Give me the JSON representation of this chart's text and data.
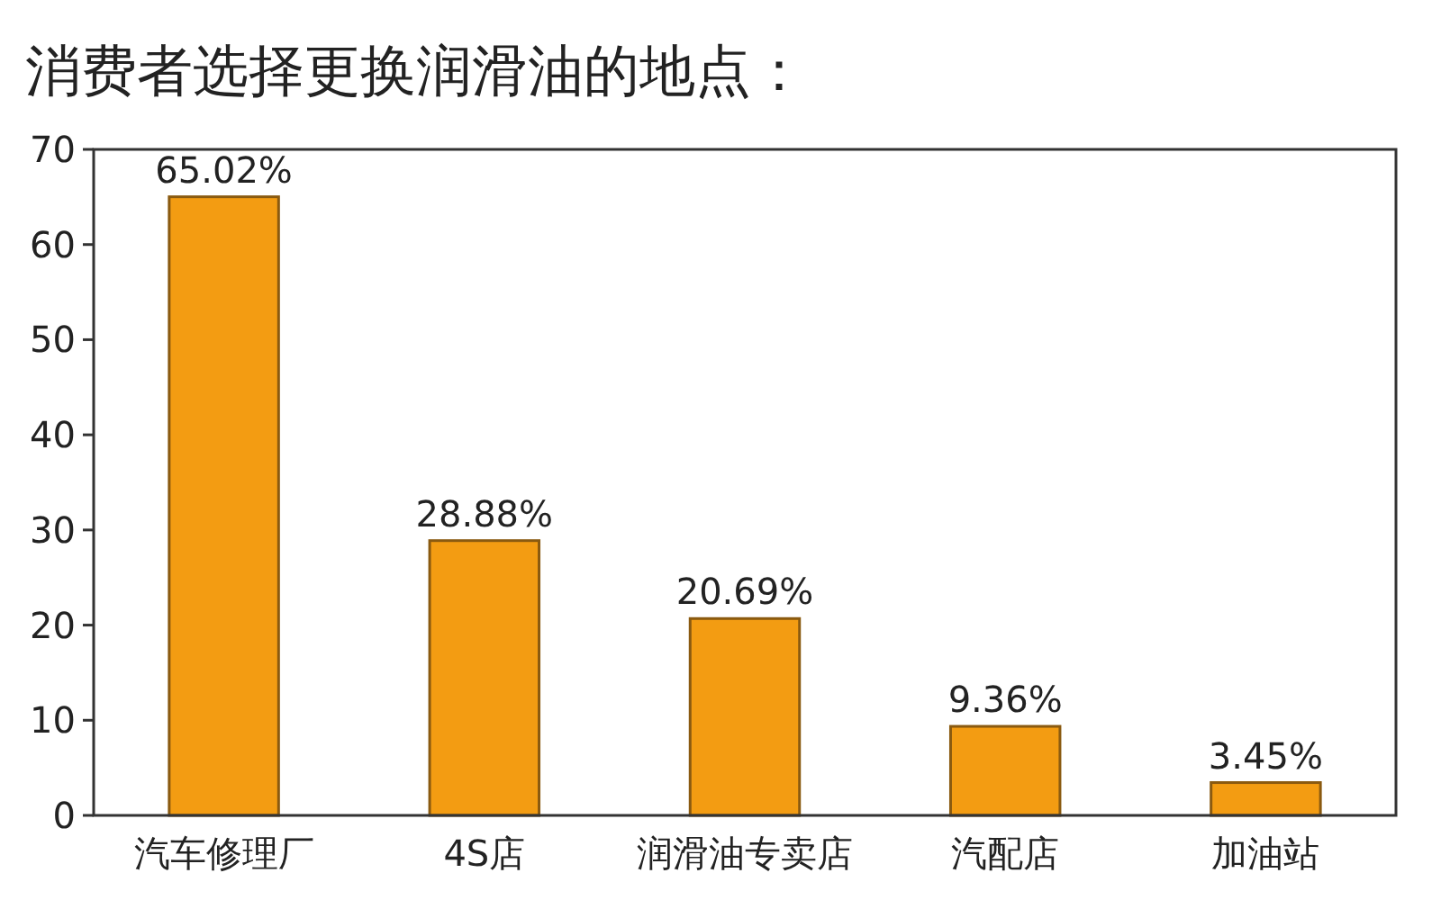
{
  "chart_data": {
    "type": "bar",
    "title": "消费者选择更换润滑油的地点：",
    "categories": [
      "汽车修理厂",
      "4S店",
      "润滑油专卖店",
      "汽配店",
      "加油站"
    ],
    "values": [
      65.02,
      28.88,
      20.69,
      9.36,
      3.45
    ],
    "value_labels": [
      "65.02%",
      "28.88%",
      "20.69%",
      "9.36%",
      "3.45%"
    ],
    "color": "#f39c12",
    "ylim": [
      0,
      70
    ],
    "yticks": [
      0,
      10,
      20,
      30,
      40,
      50,
      60,
      70
    ]
  }
}
